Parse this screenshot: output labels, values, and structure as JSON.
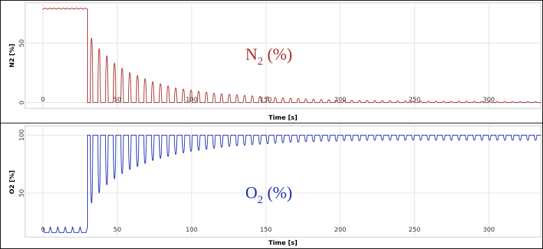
{
  "chart_data": [
    {
      "type": "line",
      "panel": "top",
      "xlabel": "Time [s]",
      "ylabel": "N2 [%]",
      "annotation": {
        "base": "N",
        "sub": "2",
        "rest": " (%)"
      },
      "color": "#a83232",
      "xlim": [
        -12,
        335
      ],
      "ylim": [
        -5,
        84
      ],
      "x_ticks": [
        0,
        50,
        100,
        150,
        200,
        250,
        300
      ],
      "y_ticks": [
        0,
        50
      ],
      "grid": true,
      "series": [
        {
          "baseline_value": 79,
          "baseline_x_range": [
            0,
            30
          ],
          "pulse_start": 30,
          "pulse_period": 5.15,
          "pulse_count": 59,
          "pulse_floor": 0,
          "pulse_peaks": [
            62,
            52,
            45,
            38,
            33,
            29,
            26,
            23,
            20,
            18,
            16,
            14,
            13,
            12,
            11,
            10,
            9,
            8.5,
            8,
            7.5,
            7,
            6.5,
            6,
            5.5,
            5,
            4.6,
            4.2,
            3.9,
            3.6,
            3.3,
            3,
            2.8,
            2.6,
            2.4,
            2.2,
            2.1,
            2,
            1.9,
            1.8,
            1.7,
            1.6,
            1.5,
            1.5,
            1.4,
            1.4,
            1.3,
            1.3,
            1.2,
            1.2,
            1.2,
            1.1,
            1.1,
            1.1,
            1,
            1,
            1,
            1,
            1,
            1
          ],
          "x_end": 335
        }
      ]
    },
    {
      "type": "line",
      "panel": "bottom",
      "xlabel": "Time [s]",
      "ylabel": "O2 [%]",
      "annotation": {
        "base": "O",
        "sub": "2",
        "rest": " (%)"
      },
      "color": "#2030b0",
      "xlim": [
        -12,
        335
      ],
      "ylim": [
        12,
        108
      ],
      "x_ticks": [
        0,
        50,
        100,
        150,
        200,
        250,
        300
      ],
      "y_ticks": [
        50,
        100
      ],
      "grid": true,
      "series": [
        {
          "baseline_high": 21,
          "baseline_low": 16,
          "baseline_x_range": [
            0,
            30
          ],
          "baseline_pulse_count": 6,
          "pulse_start": 30,
          "pulse_period": 5.15,
          "pulse_count": 59,
          "pulse_ceiling": 100,
          "pulse_troughs": [
            33,
            43,
            51,
            57,
            62,
            66,
            69,
            72,
            75,
            77,
            79,
            81,
            82.5,
            84,
            85,
            86,
            87,
            88,
            89,
            89.5,
            90,
            90.5,
            91,
            91.5,
            92,
            92.5,
            93,
            93,
            93.5,
            93.5,
            94,
            94,
            94,
            94.5,
            94.5,
            94.5,
            95,
            95,
            95,
            95,
            95,
            95,
            95,
            95,
            95,
            95,
            95,
            95,
            95,
            95,
            95,
            95,
            95,
            95,
            95,
            95,
            95,
            95,
            95
          ],
          "x_end": 335
        }
      ]
    }
  ]
}
